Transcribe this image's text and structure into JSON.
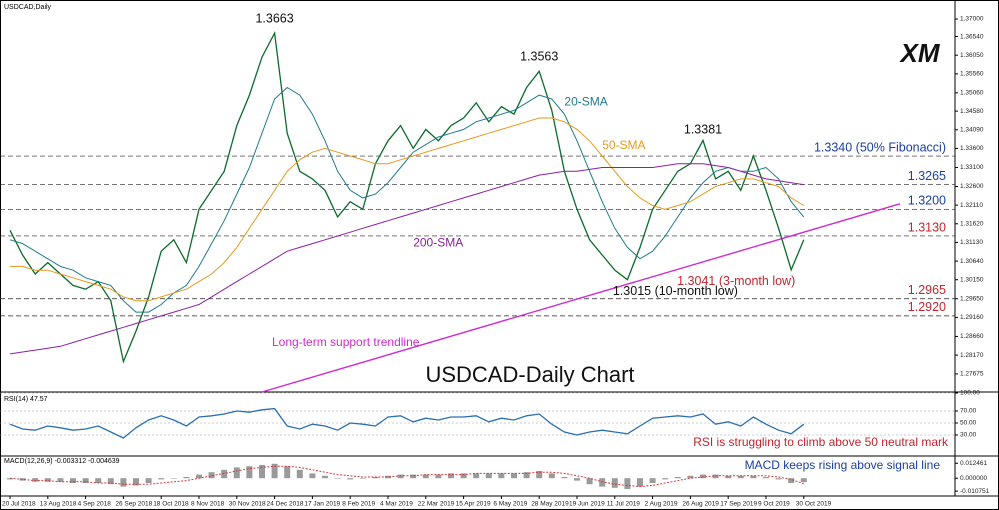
{
  "logo": "XM",
  "chart_data": [
    {
      "type": "line",
      "title": "USDCAD,Daily",
      "subtitle": "USDCAD-Daily Chart",
      "ylim": [
        1.272,
        1.375
      ],
      "yticks": [
        {
          "value": 1.37,
          "label": "1.37000"
        },
        {
          "value": 1.3654,
          "label": "1.36540"
        },
        {
          "value": 1.3605,
          "label": "1.36050"
        },
        {
          "value": 1.3556,
          "label": "1.35560"
        },
        {
          "value": 1.3506,
          "label": "1.35060"
        },
        {
          "value": 1.3458,
          "label": "1.34580"
        },
        {
          "value": 1.3409,
          "label": "1.34090"
        },
        {
          "value": 1.336,
          "label": "1.33600"
        },
        {
          "value": 1.331,
          "label": "1.33100"
        },
        {
          "value": 1.326,
          "label": "1.32600"
        },
        {
          "value": 1.3211,
          "label": "1.32110"
        },
        {
          "value": 1.3162,
          "label": "1.31620"
        },
        {
          "value": 1.3113,
          "label": "1.31130"
        },
        {
          "value": 1.3064,
          "label": "1.30640"
        },
        {
          "value": 1.3015,
          "label": "1.30150"
        },
        {
          "value": 1.2965,
          "label": "1.29650"
        },
        {
          "value": 1.2916,
          "label": "1.29160"
        },
        {
          "value": 1.2866,
          "label": "1.28660"
        },
        {
          "value": 1.2817,
          "label": "1.28170"
        },
        {
          "value": 1.27675,
          "label": "1.27675"
        }
      ],
      "series": [
        {
          "color": "#0b6b2a",
          "values": [
            1.3145,
            1.308,
            1.303,
            1.306,
            1.303,
            1.3,
            1.299,
            1.301,
            1.296,
            1.28,
            1.288,
            1.297,
            1.309,
            1.312,
            1.306,
            1.32,
            1.325,
            1.33,
            1.342,
            1.35,
            1.36,
            1.3663,
            1.34,
            1.33,
            1.328,
            1.325,
            1.318,
            1.322,
            1.32,
            1.332,
            1.338,
            1.342,
            1.336,
            1.341,
            1.338,
            1.342,
            1.344,
            1.348,
            1.343,
            1.347,
            1.345,
            1.352,
            1.3563,
            1.346,
            1.33,
            1.32,
            1.312,
            1.308,
            1.304,
            1.3015,
            1.31,
            1.32,
            1.325,
            1.33,
            1.332,
            1.3381,
            1.328,
            1.33,
            1.325,
            1.334,
            1.325,
            1.315,
            1.3041,
            1.312
          ]
        },
        {
          "name": "20-SMA",
          "color": "#1f7a8c",
          "values": [
            1.312,
            1.311,
            1.309,
            1.307,
            1.305,
            1.304,
            1.302,
            1.301,
            1.3,
            1.296,
            1.293,
            1.293,
            1.295,
            1.298,
            1.3,
            1.305,
            1.311,
            1.317,
            1.324,
            1.331,
            1.34,
            1.349,
            1.352,
            1.35,
            1.345,
            1.338,
            1.33,
            1.325,
            1.323,
            1.324,
            1.327,
            1.331,
            1.335,
            1.337,
            1.339,
            1.34,
            1.341,
            1.343,
            1.344,
            1.345,
            1.346,
            1.348,
            1.35,
            1.349,
            1.345,
            1.338,
            1.33,
            1.322,
            1.315,
            1.31,
            1.307,
            1.309,
            1.313,
            1.318,
            1.323,
            1.327,
            1.33,
            1.331,
            1.33,
            1.33,
            1.331,
            1.328,
            1.322,
            1.318
          ]
        },
        {
          "name": "50-SMA",
          "color": "#e69a1f",
          "values": [
            1.305,
            1.305,
            1.304,
            1.304,
            1.303,
            1.302,
            1.301,
            1.3,
            1.299,
            1.297,
            1.296,
            1.296,
            1.297,
            1.298,
            1.299,
            1.301,
            1.303,
            1.306,
            1.31,
            1.315,
            1.32,
            1.325,
            1.33,
            1.333,
            1.335,
            1.336,
            1.335,
            1.334,
            1.333,
            1.332,
            1.332,
            1.333,
            1.334,
            1.335,
            1.336,
            1.337,
            1.338,
            1.339,
            1.34,
            1.341,
            1.342,
            1.343,
            1.344,
            1.344,
            1.343,
            1.341,
            1.338,
            1.334,
            1.33,
            1.326,
            1.323,
            1.321,
            1.32,
            1.321,
            1.322,
            1.324,
            1.326,
            1.327,
            1.328,
            1.328,
            1.327,
            1.326,
            1.323,
            1.321
          ]
        },
        {
          "name": "200-SMA",
          "color": "#8b1fa3",
          "values": [
            1.282,
            1.2825,
            1.283,
            1.2835,
            1.284,
            1.285,
            1.286,
            1.287,
            1.288,
            1.289,
            1.29,
            1.291,
            1.292,
            1.293,
            1.294,
            1.295,
            1.297,
            1.299,
            1.301,
            1.303,
            1.305,
            1.307,
            1.309,
            1.31,
            1.311,
            1.312,
            1.313,
            1.314,
            1.315,
            1.316,
            1.317,
            1.318,
            1.319,
            1.32,
            1.321,
            1.322,
            1.323,
            1.324,
            1.325,
            1.326,
            1.327,
            1.328,
            1.329,
            1.3295,
            1.33,
            1.33,
            1.3305,
            1.331,
            1.331,
            1.331,
            1.331,
            1.331,
            1.3315,
            1.332,
            1.332,
            1.332,
            1.3315,
            1.331,
            1.33,
            1.329,
            1.328,
            1.3275,
            1.327,
            1.3265
          ]
        }
      ],
      "levels": [
        {
          "value": 1.334,
          "label": "1.3340 (50% Fibonacci)",
          "color": "#1a3fa0"
        },
        {
          "value": 1.3265,
          "label": "1.3265",
          "color": "#1a3fa0"
        },
        {
          "value": 1.32,
          "label": "1.3200",
          "color": "#1a3fa0"
        },
        {
          "value": 1.313,
          "label": "1.3130",
          "color": "#c0262d"
        },
        {
          "value": 1.2965,
          "label": "1.2965",
          "color": "#c0262d"
        },
        {
          "value": 1.292,
          "label": "1.2920",
          "color": "#c0262d"
        }
      ],
      "annotations": [
        {
          "value": 1.3663,
          "label": "1.3663"
        },
        {
          "value": 1.3563,
          "label": "1.3563"
        },
        {
          "value": 1.3381,
          "label": "1.3381"
        },
        {
          "value": 1.3041,
          "label": "1.3041 (3-month low)"
        },
        {
          "value": 1.3015,
          "label": "1.3015 (10-month  low)"
        }
      ],
      "trendline": {
        "label": "Long-term support trendline",
        "values": [
          1.272,
          1.314
        ],
        "color": "#d02bd0"
      }
    },
    {
      "type": "line",
      "title": "RSI(14) 47.57",
      "ylim": [
        0,
        100
      ],
      "yticks": [
        {
          "value": 100,
          "label": "100.00"
        },
        {
          "value": 70,
          "label": "70.00"
        },
        {
          "value": 50,
          "label": "50.00"
        },
        {
          "value": 30,
          "label": "30.00"
        }
      ],
      "note": "RSI is struggling to climb above 50 neutral mark",
      "series": [
        {
          "color": "#2a6fb0",
          "values": [
            48,
            40,
            38,
            45,
            42,
            38,
            40,
            45,
            35,
            25,
            42,
            55,
            62,
            55,
            45,
            60,
            62,
            65,
            70,
            68,
            72,
            74,
            45,
            40,
            48,
            45,
            38,
            50,
            48,
            45,
            60,
            62,
            52,
            58,
            55,
            60,
            60,
            62,
            52,
            58,
            55,
            62,
            65,
            48,
            35,
            30,
            35,
            38,
            35,
            32,
            45,
            58,
            60,
            62,
            60,
            65,
            48,
            52,
            45,
            60,
            48,
            38,
            32,
            48
          ]
        }
      ]
    },
    {
      "type": "bar",
      "title": "MACD(12,26,9) -0.003312 -0.004639",
      "ylim": [
        -0.0115,
        0.0135
      ],
      "yticks": [
        0.012461,
        {
          "value": 0,
          "label": "0.000000"
        },
        -0.010751
      ],
      "note": "MACD keeps rising above signal line",
      "categories": [
        "20 Jul 2018",
        null,
        null,
        "13 Aug 2018",
        null,
        null,
        "4 Sep 2018",
        null,
        null,
        "26 Sep 2018",
        null,
        null,
        "18 Oct 2018",
        null,
        null,
        "8 Nov 2018",
        null,
        null,
        "30 Nov 2018",
        null,
        null,
        "24 Dec 2018",
        null,
        null,
        "17 Jan 2019",
        null,
        null,
        "8 Feb 2019",
        null,
        null,
        "4 Mar 2019",
        null,
        null,
        "22 Mar 2019",
        null,
        null,
        "15 Apr 2019",
        null,
        null,
        "6 May 2019",
        null,
        null,
        "28 May 2019",
        null,
        null,
        "19 Jun 2019",
        null,
        null,
        "11 Jul 2019",
        null,
        null,
        "2 Aug 2019",
        null,
        null,
        "26 Aug 2019",
        null,
        null,
        "17 Sep 2019",
        null,
        null,
        "9 Oct 2019",
        null,
        null,
        "30 Oct 2019"
      ],
      "series": [
        {
          "color": "#9a9a9a",
          "values": [
            -0.001,
            -0.002,
            -0.003,
            -0.003,
            -0.003,
            -0.004,
            -0.004,
            -0.004,
            -0.005,
            -0.007,
            -0.006,
            -0.004,
            -0.001,
            0,
            0.001,
            0.003,
            0.005,
            0.007,
            0.009,
            0.01,
            0.011,
            0.012,
            0.01,
            0.007,
            0.004,
            0.002,
            0,
            -0.001,
            0,
            0.001,
            0.002,
            0.003,
            0.003,
            0.003,
            0.003,
            0.004,
            0.004,
            0.004,
            0.004,
            0.004,
            0.004,
            0.005,
            0.006,
            0.004,
            0.001,
            -0.002,
            -0.005,
            -0.007,
            -0.008,
            -0.009,
            -0.007,
            -0.004,
            -0.001,
            0.001,
            0.002,
            0.003,
            0.003,
            0.002,
            0.002,
            0.002,
            0.001,
            -0.001,
            -0.004,
            -0.003312
          ]
        },
        {
          "color": "#d33a3a",
          "values": [
            0,
            -0.001,
            -0.002,
            -0.002,
            -0.003,
            -0.003,
            -0.003,
            -0.004,
            -0.004,
            -0.005,
            -0.005,
            -0.005,
            -0.004,
            -0.003,
            -0.002,
            0,
            0.002,
            0.004,
            0.006,
            0.008,
            0.009,
            0.01,
            0.01,
            0.009,
            0.007,
            0.005,
            0.003,
            0.002,
            0.001,
            0.001,
            0.001,
            0.002,
            0.002,
            0.003,
            0.003,
            0.003,
            0.003,
            0.004,
            0.004,
            0.004,
            0.004,
            0.004,
            0.005,
            0.005,
            0.004,
            0.002,
            0,
            -0.003,
            -0.005,
            -0.006,
            -0.007,
            -0.006,
            -0.004,
            -0.002,
            0,
            0.001,
            0.002,
            0.002,
            0.002,
            0.002,
            0.002,
            0.001,
            -0.001,
            -0.004639
          ]
        }
      ]
    }
  ]
}
